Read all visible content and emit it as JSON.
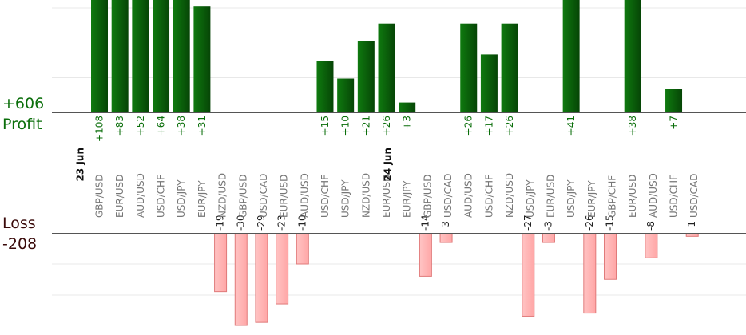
{
  "summary": {
    "profit_total": "+606",
    "profit_label": "Profit",
    "loss_label": "Loss",
    "loss_total": "-208"
  },
  "colors": {
    "profit_bar": "#0b6b0b",
    "profit_bar_dark": "#064506",
    "loss_bar": "#ffb3b3",
    "loss_bar_border": "#e07a7a",
    "profit_text": "#0a6e0a",
    "loss_text": "#3a0a0a"
  },
  "chart_data": {
    "type": "bar",
    "grid": true,
    "categories": [
      {
        "date": "23 Jun",
        "pair": "GBP/USD"
      },
      {
        "date": "",
        "pair": "EUR/USD"
      },
      {
        "date": "",
        "pair": "AUD/USD"
      },
      {
        "date": "",
        "pair": "USD/CHF"
      },
      {
        "date": "",
        "pair": "USD/JPY"
      },
      {
        "date": "",
        "pair": "EUR/JPY"
      },
      {
        "date": "",
        "pair": "NZD/USD"
      },
      {
        "date": "",
        "pair": "GBP/USD"
      },
      {
        "date": "",
        "pair": "USD/CAD"
      },
      {
        "date": "",
        "pair": "EUR/USD"
      },
      {
        "date": "",
        "pair": "AUD/USD"
      },
      {
        "date": "",
        "pair": "USD/CHF"
      },
      {
        "date": "",
        "pair": "USD/JPY"
      },
      {
        "date": "",
        "pair": "NZD/USD"
      },
      {
        "date": "",
        "pair": "EUR/USD"
      },
      {
        "date": "24 Jun",
        "pair": "EUR/JPY"
      },
      {
        "date": "",
        "pair": "GBP/USD"
      },
      {
        "date": "",
        "pair": "USD/CAD"
      },
      {
        "date": "",
        "pair": "AUD/USD"
      },
      {
        "date": "",
        "pair": "USD/CHF"
      },
      {
        "date": "",
        "pair": "NZD/USD"
      },
      {
        "date": "",
        "pair": "USD/JPY"
      },
      {
        "date": "",
        "pair": "EUR/USD"
      },
      {
        "date": "",
        "pair": "USD/JPY"
      },
      {
        "date": "",
        "pair": "EUR/JPY"
      },
      {
        "date": "",
        "pair": "GBP/CHF"
      },
      {
        "date": "",
        "pair": "EUR/USD"
      },
      {
        "date": "",
        "pair": "AUD/USD"
      },
      {
        "date": "",
        "pair": "USD/CHF"
      },
      {
        "date": "",
        "pair": "USD/CAD"
      }
    ],
    "series": [
      {
        "name": "Profit",
        "values": [
          108,
          83,
          52,
          64,
          38,
          31,
          null,
          null,
          null,
          null,
          null,
          15,
          10,
          21,
          26,
          3,
          null,
          null,
          26,
          17,
          26,
          null,
          null,
          41,
          null,
          null,
          38,
          null,
          7,
          null
        ],
        "labels": [
          "+108",
          "+83",
          "+52",
          "+64",
          "+38",
          "+31",
          "",
          "",
          "",
          "",
          "",
          "+15",
          "+10",
          "+21",
          "+26",
          "+3",
          "",
          "",
          "+26",
          "+17",
          "+26",
          "",
          "",
          "+41",
          "",
          "",
          "+38",
          "",
          "+7",
          ""
        ]
      },
      {
        "name": "Loss",
        "values": [
          null,
          null,
          null,
          null,
          null,
          null,
          -19,
          -30,
          -29,
          -23,
          -10,
          null,
          null,
          null,
          null,
          null,
          -14,
          -3,
          null,
          null,
          null,
          -27,
          -3,
          null,
          -26,
          -15,
          null,
          -8,
          null,
          -1
        ],
        "labels": [
          "",
          "",
          "",
          "",
          "",
          "",
          "-19",
          "-30",
          "-29",
          "-23",
          "-10",
          "",
          "",
          "",
          "",
          "",
          "-14",
          "-3",
          "",
          "",
          "",
          "-27",
          "-3",
          "",
          "-26",
          "-15",
          "",
          "-8",
          "",
          "-1"
        ]
      }
    ]
  }
}
